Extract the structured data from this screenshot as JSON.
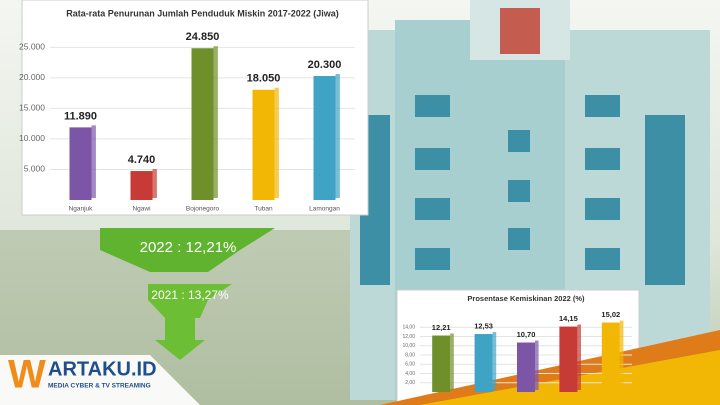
{
  "chart_data": [
    {
      "type": "bar",
      "title": "Rata-rata Penurunan Jumlah Penduduk Miskin 2017-2022 (Jiwa)",
      "categories": [
        "Nganjuk",
        "Ngawi",
        "Bojonegoro",
        "Tuban",
        "Lamongan"
      ],
      "values": [
        11890,
        4740,
        24850,
        18050,
        20300
      ],
      "value_labels": [
        "11.890",
        "4.740",
        "24.850",
        "18.050",
        "20.300"
      ],
      "colors": [
        "#7d55a6",
        "#c63b35",
        "#6f8f2a",
        "#f2b705",
        "#3ea3c4"
      ],
      "ylim": [
        0,
        28000
      ],
      "yticks": [
        {
          "value": 5000,
          "label": "5.000"
        },
        {
          "value": 10000,
          "label": "10.000"
        },
        {
          "value": 15000,
          "label": "15.000"
        },
        {
          "value": 20000,
          "label": "20.000"
        },
        {
          "value": 25000,
          "label": "25.000"
        }
      ],
      "grid": true
    },
    {
      "type": "bar",
      "title": "Prosentase Kemiskinan 2022 (%)",
      "categories": [
        null,
        null,
        null,
        null,
        null
      ],
      "values": [
        12.21,
        12.53,
        10.7,
        14.15,
        15.02
      ],
      "value_labels": [
        "12,21",
        "12,53",
        "10,70",
        "14,15",
        "15,02"
      ],
      "colors": [
        "#6f8f2a",
        "#3ea3c4",
        "#7d55a6",
        "#c63b35",
        "#f2b705"
      ],
      "ylim": [
        0,
        16
      ],
      "yticks": [
        {
          "value": 2,
          "label": "2,00"
        },
        {
          "value": 4,
          "label": "4,00"
        },
        {
          "value": 6,
          "label": "6,00"
        },
        {
          "value": 8,
          "label": "8,00"
        },
        {
          "value": 10,
          "label": "10,00"
        },
        {
          "value": 12,
          "label": "12,00"
        },
        {
          "value": 14,
          "label": "14,00"
        }
      ],
      "grid": true
    }
  ],
  "banner": {
    "year_2022": "2022 : 12,21%",
    "year_2021": "2021 : 13,27%"
  },
  "logo": {
    "name": "ARTAKU.ID",
    "tagline": "MEDIA CYBER & TV STREAMING"
  }
}
